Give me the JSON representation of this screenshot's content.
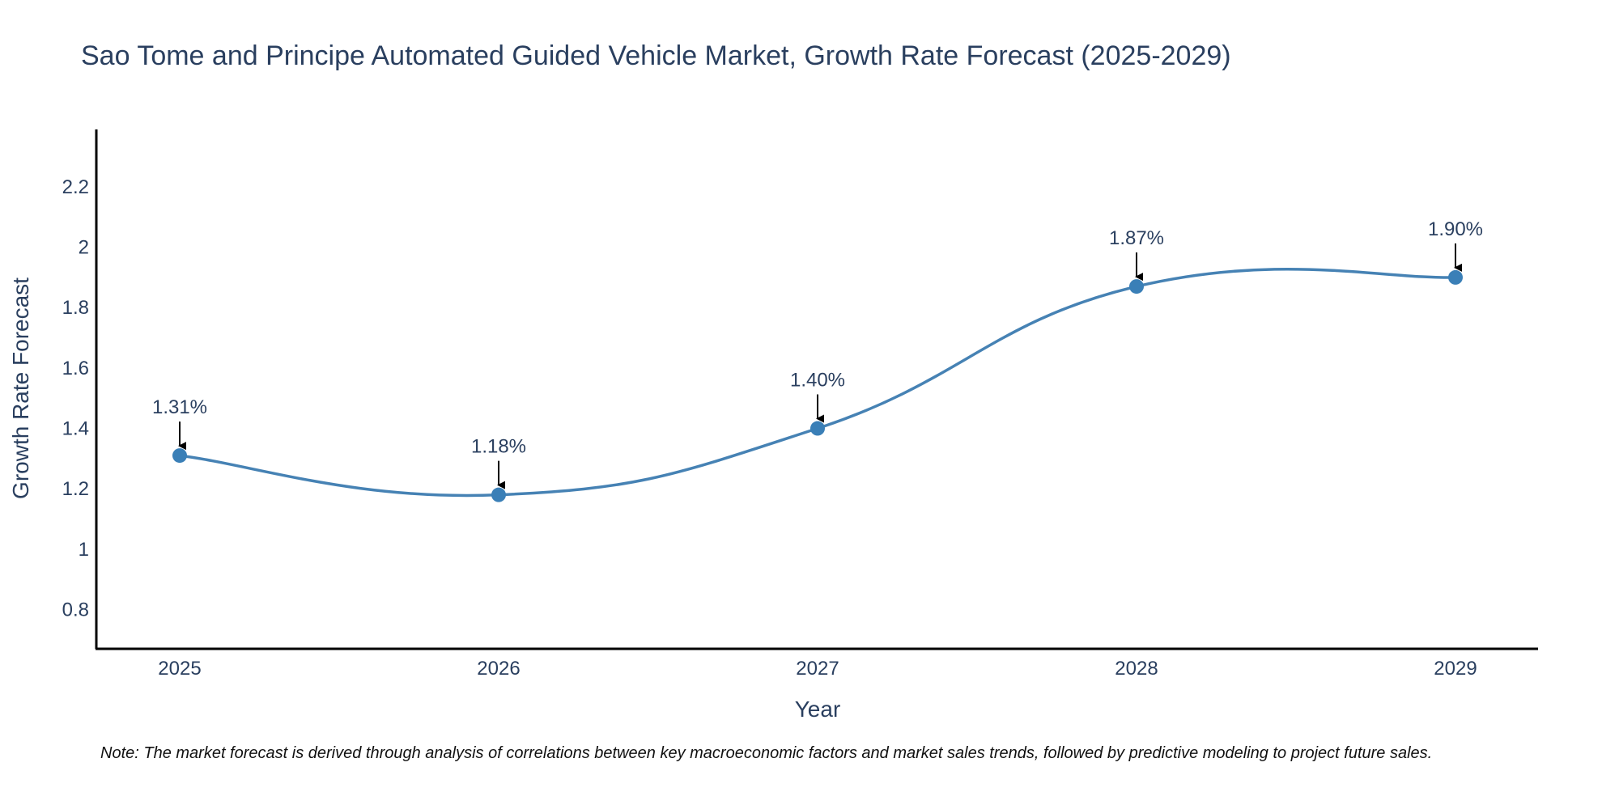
{
  "chart_data": {
    "type": "line",
    "title": "Sao Tome and Principe Automated Guided Vehicle Market, Growth Rate Forecast (2025-2029)",
    "xlabel": "Year",
    "ylabel": "Growth Rate Forecast",
    "categories": [
      "2025",
      "2026",
      "2027",
      "2028",
      "2029"
    ],
    "values": [
      1.31,
      1.18,
      1.4,
      1.87,
      1.9
    ],
    "data_labels": [
      "1.31%",
      "1.18%",
      "1.40%",
      "1.87%",
      "1.90%"
    ],
    "ylim": [
      0.67,
      2.39
    ],
    "yticks": [
      0.8,
      1,
      1.2,
      1.4,
      1.6,
      1.8,
      2,
      2.2
    ],
    "ytick_labels": [
      "0.8",
      "1",
      "1.2",
      "1.4",
      "1.6",
      "1.8",
      "2",
      "2.2"
    ],
    "grid": false,
    "line_color": "#4682b4",
    "marker_color": "#3a7fb7",
    "annotation_arrow_color": "#000000"
  },
  "note": "Note: The market forecast is derived through analysis of correlations between key macroeconomic factors and market sales trends, followed by predictive modeling to project future sales."
}
